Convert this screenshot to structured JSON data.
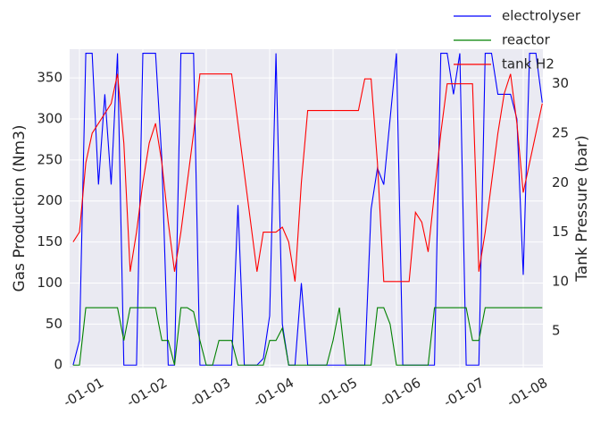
{
  "chart_data": {
    "type": "line",
    "ylabel": "Gas Production (Nm3)",
    "y2label": "Tank Pressure (bar)",
    "x": [
      -0.1,
      0,
      0.1,
      0.2,
      0.3,
      0.4,
      0.5,
      0.6,
      0.7,
      0.8,
      0.9,
      1,
      1.1,
      1.2,
      1.3,
      1.4,
      1.5,
      1.6,
      1.7,
      1.8,
      1.9,
      2,
      2.1,
      2.2,
      2.3,
      2.4,
      2.5,
      2.6,
      2.7,
      2.8,
      2.9,
      3,
      3.1,
      3.2,
      3.3,
      3.4,
      3.5,
      3.6,
      3.7,
      3.8,
      3.9,
      4,
      4.1,
      4.2,
      4.3,
      4.4,
      4.5,
      4.6,
      4.7,
      4.8,
      4.9,
      5,
      5.1,
      5.2,
      5.3,
      5.4,
      5.5,
      5.6,
      5.7,
      5.8,
      5.9,
      6,
      6.1,
      6.2,
      6.3,
      6.4,
      6.5,
      6.6,
      6.7,
      6.8,
      6.9,
      7,
      7.1,
      7.2,
      7.3
    ],
    "series": [
      {
        "name": "electrolyser",
        "color": "#0000ff",
        "values": [
          0,
          30,
          380,
          380,
          220,
          330,
          220,
          380,
          0,
          0,
          0,
          380,
          380,
          380,
          250,
          0,
          0,
          380,
          380,
          380,
          0,
          0,
          0,
          0,
          0,
          0,
          195,
          0,
          0,
          0,
          8,
          60,
          380,
          50,
          0,
          0,
          100,
          0,
          0,
          0,
          0,
          0,
          0,
          0,
          0,
          0,
          0,
          190,
          240,
          220,
          300,
          380,
          0,
          0,
          0,
          0,
          0,
          0,
          380,
          380,
          330,
          380,
          0,
          0,
          0,
          380,
          380,
          330,
          330,
          330,
          300,
          110,
          380,
          380,
          320
        ]
      },
      {
        "name": "reactor",
        "color": "#008000",
        "values": [
          0,
          0,
          70,
          70,
          70,
          70,
          70,
          70,
          30,
          70,
          70,
          70,
          70,
          70,
          30,
          30,
          0,
          70,
          70,
          65,
          30,
          0,
          0,
          30,
          30,
          30,
          0,
          0,
          0,
          0,
          0,
          30,
          30,
          45,
          0,
          0,
          0,
          0,
          0,
          0,
          0,
          30,
          70,
          0,
          0,
          0,
          0,
          0,
          70,
          70,
          50,
          0,
          0,
          0,
          0,
          0,
          0,
          70,
          70,
          70,
          70,
          70,
          70,
          30,
          30,
          70,
          70,
          70,
          70,
          70,
          70,
          70,
          70,
          70,
          70
        ]
      },
      {
        "name": "tank H2",
        "color": "#ff0000",
        "axis": "y2",
        "values": [
          14,
          15,
          22,
          25,
          26,
          27,
          28,
          31,
          24,
          11,
          15,
          20,
          24,
          26,
          22,
          16,
          11,
          15,
          20,
          25,
          31,
          31,
          31,
          31,
          31,
          31,
          26,
          21,
          16,
          11,
          15,
          15,
          15,
          15.5,
          14,
          10,
          20,
          27.3,
          27.3,
          27.3,
          27.3,
          27.3,
          27.3,
          27.3,
          27.3,
          27.3,
          30.5,
          30.5,
          22,
          10,
          10,
          10,
          10,
          10,
          17,
          16,
          13,
          19,
          25,
          30,
          30,
          30,
          30,
          30,
          11,
          15,
          20,
          25,
          29,
          31,
          26,
          19,
          22,
          25,
          28
        ]
      }
    ],
    "xlim": [
      -0.155,
      7.31
    ],
    "xticks": [
      {
        "value": 0,
        "label": "-01-01"
      },
      {
        "value": 1,
        "label": "-01-02"
      },
      {
        "value": 2,
        "label": "-01-03"
      },
      {
        "value": 3,
        "label": "-01-04"
      },
      {
        "value": 4,
        "label": "-01-05"
      },
      {
        "value": 5,
        "label": "-01-06"
      },
      {
        "value": 6,
        "label": "-01-07"
      },
      {
        "value": 7,
        "label": "-01-08"
      }
    ],
    "ylim": [
      -3,
      385
    ],
    "yticks": [
      0,
      50,
      100,
      150,
      200,
      250,
      300,
      350
    ],
    "y2lim": [
      1.3,
      33.5
    ],
    "y2ticks": [
      5,
      10,
      15,
      20,
      25,
      30
    ],
    "grid": true,
    "legend": "upper right"
  }
}
